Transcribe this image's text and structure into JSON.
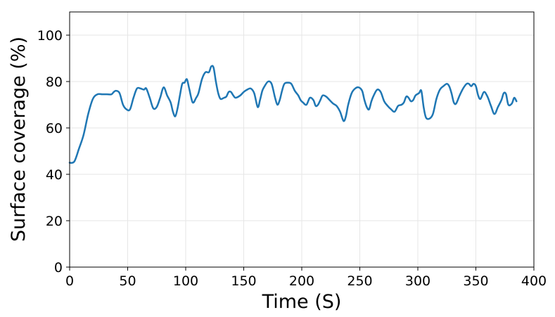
{
  "chart_data": {
    "type": "line",
    "title": "",
    "xlabel": "Time (S)",
    "ylabel": "Surface coverage (%)",
    "xlim": [
      0,
      400
    ],
    "ylim": [
      0,
      110
    ],
    "xticks": [
      0,
      50,
      100,
      150,
      200,
      250,
      300,
      350,
      400
    ],
    "yticks": [
      0,
      20,
      40,
      60,
      80,
      100
    ],
    "grid": true,
    "series": [
      {
        "color": "#1f77b4",
        "x": [
          0,
          4,
          8,
          12,
          16,
          20,
          24,
          28,
          32,
          36,
          38,
          40,
          43,
          46,
          49,
          52,
          55,
          58,
          61,
          64,
          66,
          69,
          72,
          75,
          78,
          81,
          84,
          87,
          89,
          91,
          93,
          95,
          97,
          99,
          101,
          103,
          106,
          109,
          111,
          114,
          117,
          120,
          122,
          124,
          126,
          128,
          130,
          133,
          135,
          137,
          139,
          141,
          143,
          147,
          150,
          153,
          156,
          159,
          162,
          164,
          166,
          168,
          171,
          174,
          177,
          179,
          181,
          183,
          185,
          188,
          191,
          194,
          197,
          199,
          201,
          204,
          207,
          210,
          212,
          214,
          216,
          218,
          221,
          224,
          227,
          230,
          233,
          236,
          238,
          240,
          243,
          246,
          249,
          252,
          254,
          256,
          258,
          260,
          262,
          265,
          268,
          271,
          274,
          277,
          280,
          283,
          286,
          288,
          290,
          292,
          294,
          296,
          298,
          301,
          303,
          305,
          307,
          310,
          313,
          316,
          319,
          322,
          325,
          327,
          329,
          331,
          333,
          336,
          339,
          342,
          344,
          346,
          348,
          350,
          352,
          354,
          357,
          360,
          363,
          366,
          369,
          372,
          374,
          376,
          378,
          381,
          383,
          385
        ],
        "values": [
          45,
          45.5,
          51,
          57,
          66,
          72.5,
          74.5,
          74.5,
          74.5,
          74.5,
          75.5,
          76,
          75,
          70,
          68,
          68,
          73,
          77,
          77,
          76.5,
          77,
          73,
          68.5,
          69,
          73,
          77.5,
          74,
          71,
          67,
          65,
          68.5,
          74,
          79,
          79.5,
          81,
          77,
          71,
          73,
          75,
          81,
          84,
          84,
          86.5,
          86,
          80,
          75,
          72.5,
          73,
          73.5,
          75.5,
          75.5,
          74,
          73,
          74,
          75.5,
          76.5,
          77,
          75,
          69,
          72,
          76,
          78,
          80,
          79,
          73,
          70,
          72,
          76,
          79,
          79.5,
          79,
          76,
          74,
          72,
          71,
          70,
          73,
          72,
          69.5,
          70,
          72,
          74,
          73.5,
          72,
          70.5,
          69.5,
          67,
          63,
          65,
          70,
          75,
          77,
          77.5,
          76,
          72,
          69,
          68,
          71.5,
          74,
          76.5,
          75.5,
          71.5,
          69.5,
          68,
          67,
          69.5,
          70,
          71,
          73.5,
          73,
          71.5,
          72,
          74,
          75,
          76,
          69,
          64.5,
          64,
          66,
          72.5,
          76.5,
          78,
          79,
          78,
          75,
          71,
          70.5,
          74,
          77,
          79,
          79,
          78,
          79,
          78,
          74,
          72.5,
          75.5,
          73.5,
          69.5,
          66,
          69,
          72,
          75,
          74.5,
          70,
          70.5,
          73,
          71.5
        ]
      }
    ]
  }
}
